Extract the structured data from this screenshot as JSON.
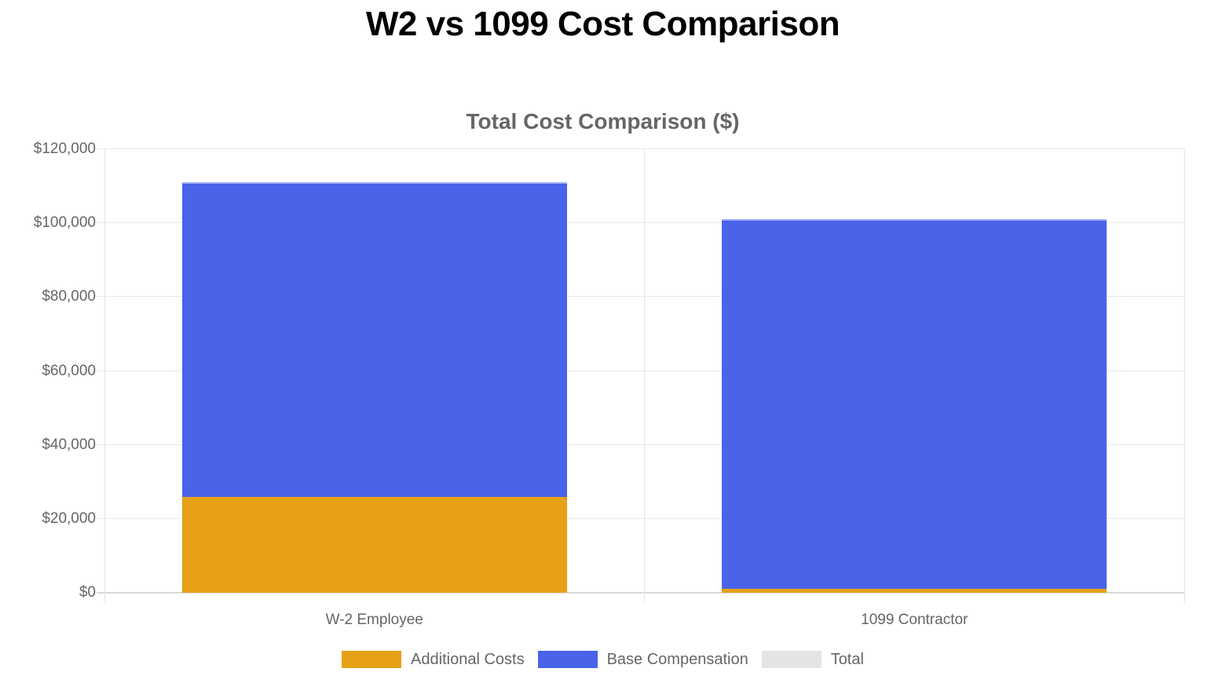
{
  "page_title": "W2 vs 1099 Cost Comparison",
  "chart_data": {
    "type": "bar",
    "stacked": true,
    "title": "Total Cost Comparison ($)",
    "categories": [
      "W-2 Employee",
      "1099 Contractor"
    ],
    "series": [
      {
        "name": "Additional Costs",
        "color": "#e6a117",
        "values": [
          26000,
          1000
        ]
      },
      {
        "name": "Base Compensation",
        "color": "#4a63e8",
        "values": [
          85000,
          100000
        ]
      },
      {
        "name": "Total",
        "color": "#e4e4e4",
        "values": [
          111000,
          101000
        ],
        "visible": false
      }
    ],
    "y_axis": {
      "min": 0,
      "max": 120000,
      "tick_step": 20000,
      "tick_labels": [
        "$0",
        "$20,000",
        "$40,000",
        "$60,000",
        "$80,000",
        "$100,000",
        "$120,000"
      ]
    },
    "legend": {
      "position": "bottom",
      "items": [
        "Additional Costs",
        "Base Compensation",
        "Total"
      ]
    },
    "grid": true,
    "ylim": [
      0,
      120000
    ]
  }
}
